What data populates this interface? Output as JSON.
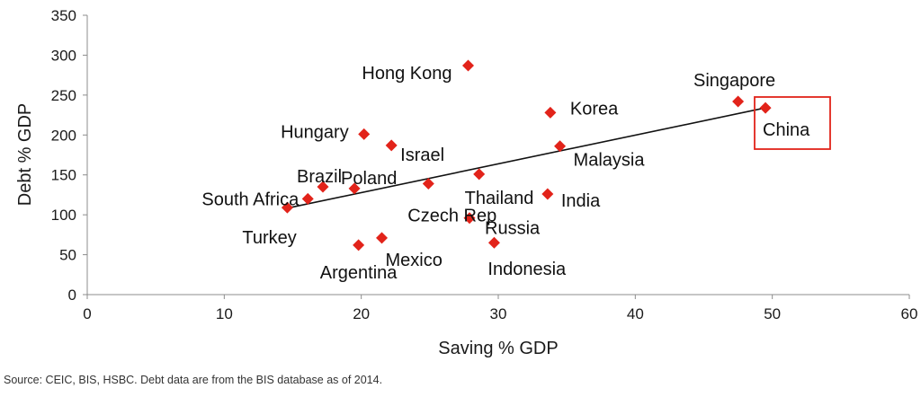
{
  "chart_data": {
    "type": "scatter",
    "xlabel": "Saving % GDP",
    "ylabel": "Debt % GDP",
    "xlim": [
      0,
      60
    ],
    "ylim": [
      0,
      350
    ],
    "xticks": [
      "0",
      "10",
      "20",
      "30",
      "40",
      "50",
      "60"
    ],
    "yticks": [
      "0",
      "50",
      "100",
      "150",
      "200",
      "250",
      "300",
      "350"
    ],
    "grid": false,
    "marker_color": "#e2231a",
    "trendline": {
      "x": [
        14.5,
        49.5
      ],
      "y": [
        108,
        234
      ]
    },
    "highlight_color": "#e2231a",
    "highlighted": "China",
    "points": [
      {
        "name": "Hong Kong",
        "x": 27.8,
        "y": 287,
        "label": "Hong Kong"
      },
      {
        "name": "Singapore",
        "x": 47.5,
        "y": 242,
        "label": "Singapore"
      },
      {
        "name": "China",
        "x": 49.5,
        "y": 234,
        "label": "China"
      },
      {
        "name": "Korea",
        "x": 33.8,
        "y": 228,
        "label": "Korea"
      },
      {
        "name": "Hungary",
        "x": 20.2,
        "y": 201,
        "label": "Hungary"
      },
      {
        "name": "Israel",
        "x": 22.2,
        "y": 187,
        "label": "Israel"
      },
      {
        "name": "Malaysia",
        "x": 34.5,
        "y": 186,
        "label": "Malaysia"
      },
      {
        "name": "Thailand",
        "x": 28.6,
        "y": 151,
        "label": "Thailand"
      },
      {
        "name": "Czech Rep",
        "x": 24.9,
        "y": 139,
        "label": "Czech Rep"
      },
      {
        "name": "Brazil",
        "x": 17.2,
        "y": 135,
        "label": "Brazil"
      },
      {
        "name": "Poland",
        "x": 19.5,
        "y": 133,
        "label": "Poland"
      },
      {
        "name": "India",
        "x": 33.6,
        "y": 126,
        "label": "India"
      },
      {
        "name": "South Africa",
        "x": 16.1,
        "y": 120,
        "label": "South Africa"
      },
      {
        "name": "Turkey",
        "x": 14.6,
        "y": 109,
        "label": "Turkey"
      },
      {
        "name": "Russia",
        "x": 27.9,
        "y": 96,
        "label": "Russia"
      },
      {
        "name": "Mexico",
        "x": 21.5,
        "y": 71,
        "label": "Mexico"
      },
      {
        "name": "Indonesia",
        "x": 29.7,
        "y": 65,
        "label": "Indonesia"
      },
      {
        "name": "Argentina",
        "x": 19.8,
        "y": 62,
        "label": "Argentina"
      }
    ]
  },
  "source": "Source: CEIC, BIS, HSBC. Debt data are from the BIS database as of 2014."
}
